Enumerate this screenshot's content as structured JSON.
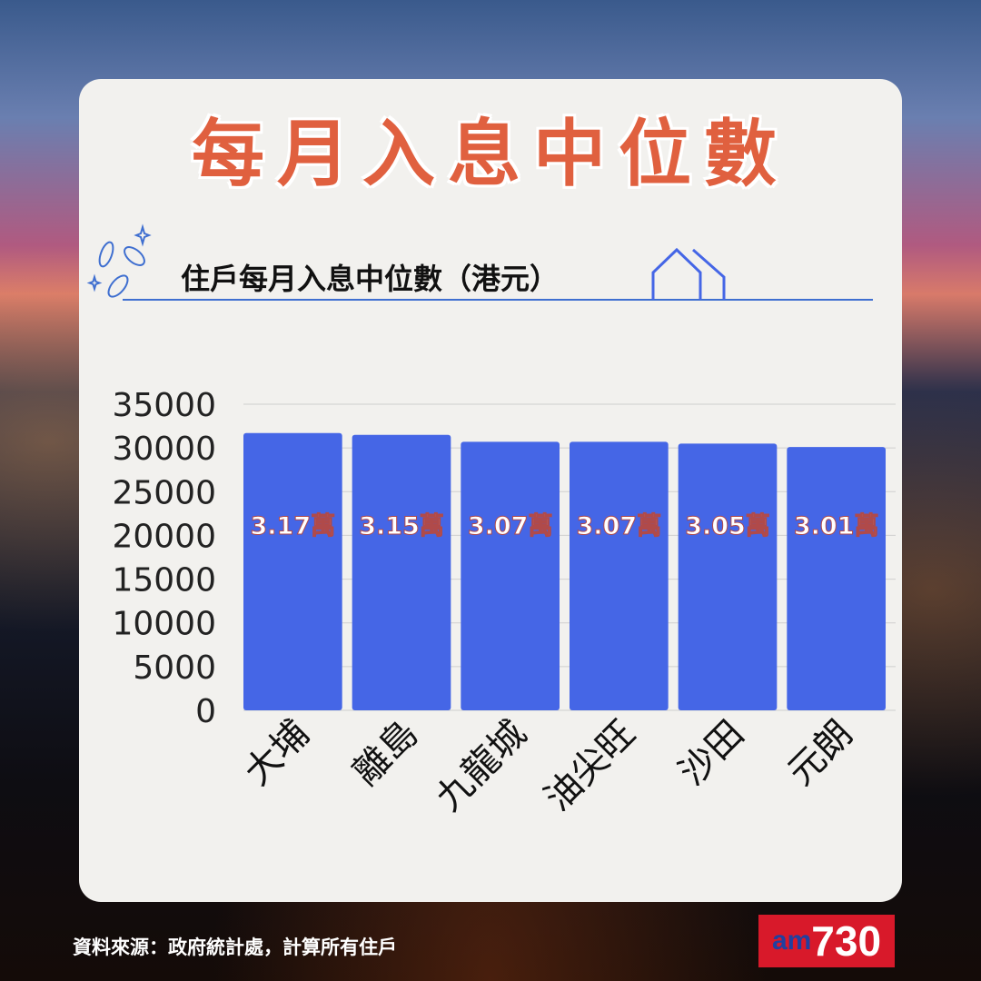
{
  "title": "每月入息中位數",
  "source": "資料來源：政府統計處，計算所有住戶",
  "logo": {
    "am": "am",
    "num": "730"
  },
  "colors": {
    "bar": "#4566e6",
    "title": "#e0603f",
    "label": "#ffffff"
  },
  "icons": [
    "coins-icon",
    "house-icon"
  ],
  "chart_data": {
    "type": "bar",
    "title": "住戶每月入息中位數（港元）",
    "categories": [
      "大埔",
      "離島",
      "九龍城",
      "油尖旺",
      "沙田",
      "元朗"
    ],
    "values": [
      31700,
      31500,
      30700,
      30700,
      30500,
      30100
    ],
    "data_labels": [
      "3.17萬",
      "3.15萬",
      "3.07萬",
      "3.07萬",
      "3.05萬",
      "3.01萬"
    ],
    "yticks": [
      "0",
      "5000",
      "10000",
      "15000",
      "20000",
      "25000",
      "30000",
      "35000"
    ],
    "ylim": [
      0,
      35000
    ],
    "grid": true
  }
}
